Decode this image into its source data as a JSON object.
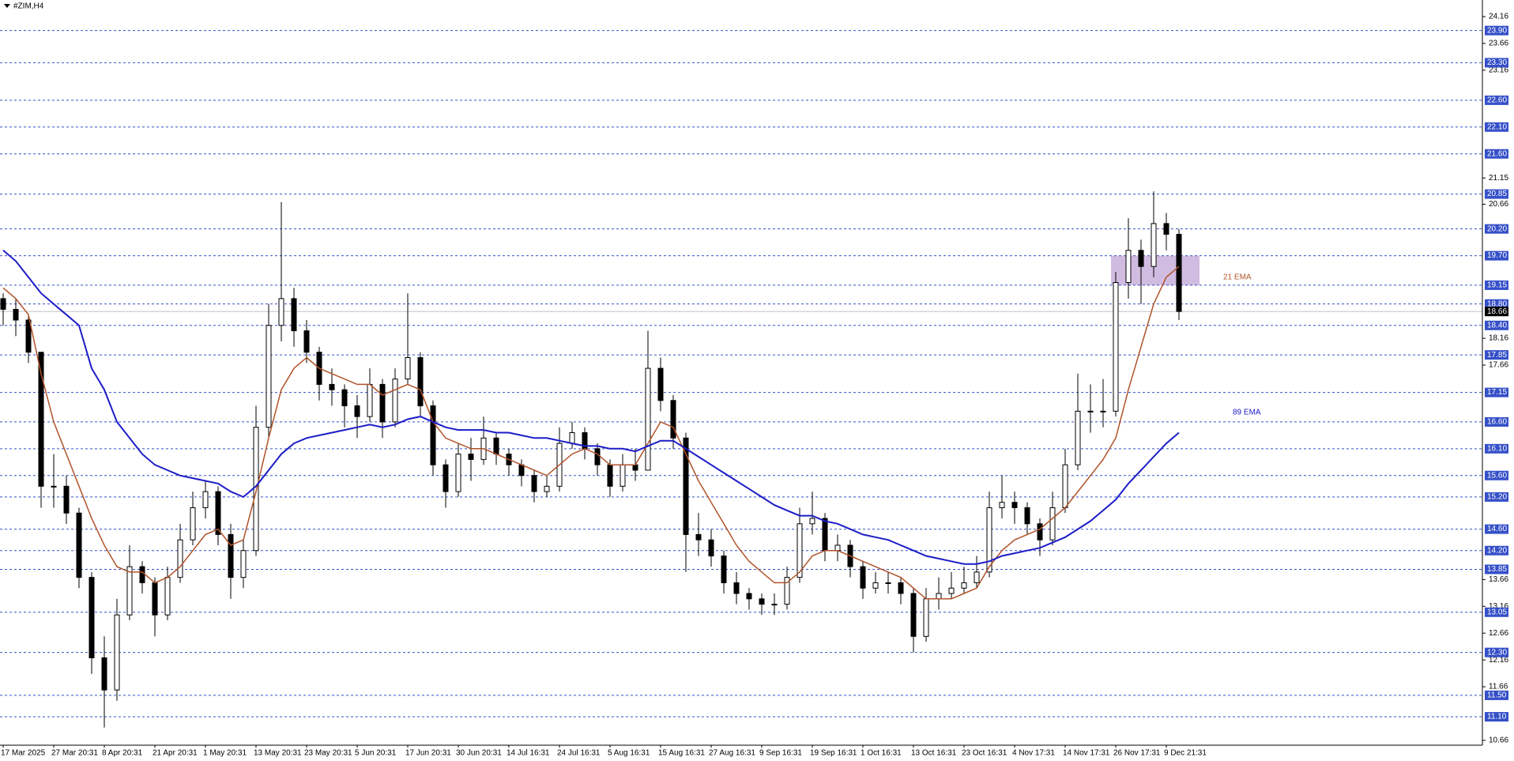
{
  "header": "#ZIM,H4",
  "chart_data": {
    "type": "candlestick",
    "categories": [
      "17 Mar 2025",
      null,
      null,
      null,
      "27 Mar 20:31",
      null,
      null,
      null,
      "8 Apr 20:31",
      null,
      null,
      null,
      "21 Apr 20:31",
      null,
      null,
      null,
      "1 May 20:31",
      null,
      null,
      null,
      "13 May 20:31",
      null,
      null,
      null,
      "23 May 20:31",
      null,
      null,
      null,
      "5 Jun 20:31",
      null,
      null,
      null,
      "17 Jun 20:31",
      null,
      null,
      null,
      "30 Jun 20:31",
      null,
      null,
      null,
      "14 Jul 16:31",
      null,
      null,
      null,
      "24 Jul 16:31",
      null,
      null,
      null,
      "5 Aug 16:31",
      null,
      null,
      null,
      "15 Aug 16:31",
      null,
      null,
      null,
      "27 Aug 16:31",
      null,
      null,
      null,
      "9 Sep 16:31",
      null,
      null,
      null,
      "19 Sep 16:31",
      null,
      null,
      null,
      "1 Oct 16:31",
      null,
      null,
      null,
      "13 Oct 16:31",
      null,
      null,
      null,
      "23 Oct 16:31",
      null,
      null,
      null,
      "4 Nov 17:31",
      null,
      null,
      null,
      "14 Nov 17:31",
      null,
      null,
      null,
      "26 Nov 17:31",
      null,
      null,
      null,
      "9 Dec 21:31",
      null
    ],
    "open": [
      18.9,
      18.7,
      18.5,
      17.9,
      15.4,
      15.4,
      14.9,
      13.7,
      12.2,
      11.6,
      13.0,
      13.9,
      13.6,
      13.0,
      13.7,
      14.4,
      15.0,
      15.3,
      14.5,
      13.7,
      14.2,
      16.5,
      18.4,
      18.9,
      18.3,
      17.9,
      17.3,
      17.2,
      16.9,
      16.7,
      17.3,
      16.6,
      17.4,
      17.8,
      16.9,
      15.8,
      15.3,
      16.0,
      15.9,
      16.3,
      16.0,
      15.8,
      15.6,
      15.3,
      15.4,
      16.2,
      16.4,
      16.1,
      15.8,
      15.4,
      15.8,
      15.7,
      17.6,
      17.0,
      16.3,
      14.5,
      14.4,
      14.1,
      13.6,
      13.4,
      13.3,
      13.2,
      13.2,
      13.7,
      14.7,
      14.8,
      14.2,
      14.3,
      13.9,
      13.5,
      13.6,
      13.6,
      13.4,
      12.6,
      13.3,
      13.4,
      13.5,
      13.6,
      13.8,
      15.0,
      15.1,
      15.0,
      14.7,
      14.4,
      15.0,
      15.8,
      16.8,
      16.8,
      16.8,
      19.2,
      19.8,
      19.5,
      20.3,
      20.1
    ],
    "high": [
      19.0,
      18.9,
      18.6,
      17.9,
      16.0,
      15.6,
      15.0,
      13.8,
      12.6,
      13.3,
      14.3,
      14.0,
      13.7,
      13.9,
      14.7,
      15.3,
      15.5,
      15.4,
      14.7,
      14.4,
      16.9,
      18.8,
      20.7,
      19.1,
      18.5,
      18.0,
      17.6,
      17.3,
      17.1,
      17.6,
      17.4,
      17.6,
      19.0,
      17.9,
      17.0,
      15.9,
      16.2,
      16.3,
      16.7,
      16.4,
      16.1,
      15.9,
      15.7,
      15.6,
      16.5,
      16.6,
      16.5,
      16.2,
      15.9,
      16.0,
      16.1,
      18.3,
      17.8,
      17.1,
      16.4,
      14.9,
      14.6,
      14.2,
      13.8,
      13.5,
      13.4,
      13.4,
      13.9,
      15.0,
      15.3,
      14.9,
      14.5,
      14.4,
      14.0,
      13.8,
      13.8,
      13.7,
      13.5,
      13.5,
      13.7,
      13.8,
      13.9,
      14.1,
      15.3,
      15.6,
      15.3,
      15.1,
      14.8,
      15.3,
      16.1,
      17.5,
      17.3,
      17.4,
      19.4,
      20.4,
      20.0,
      20.9,
      20.5,
      20.2
    ],
    "low": [
      18.4,
      18.2,
      17.7,
      15.0,
      15.0,
      14.7,
      13.5,
      11.9,
      10.9,
      11.4,
      12.9,
      13.4,
      12.6,
      12.9,
      13.6,
      14.3,
      14.8,
      14.3,
      13.3,
      13.5,
      14.1,
      16.3,
      18.1,
      18.0,
      17.7,
      17.0,
      16.9,
      16.5,
      16.3,
      16.6,
      16.3,
      16.5,
      17.3,
      16.7,
      15.6,
      15.0,
      15.2,
      15.5,
      15.8,
      15.8,
      15.6,
      15.4,
      15.1,
      15.2,
      15.3,
      16.1,
      15.9,
      15.6,
      15.2,
      15.3,
      15.5,
      15.7,
      16.8,
      16.1,
      13.8,
      14.1,
      13.9,
      13.4,
      13.2,
      13.1,
      13.0,
      13.0,
      13.1,
      13.6,
      14.5,
      14.0,
      14.0,
      13.7,
      13.3,
      13.4,
      13.4,
      13.2,
      12.3,
      12.5,
      13.1,
      13.3,
      13.4,
      13.5,
      13.7,
      14.8,
      14.7,
      14.5,
      14.1,
      14.3,
      14.9,
      15.7,
      16.4,
      16.5,
      16.7,
      18.9,
      18.8,
      19.3,
      19.8,
      18.5
    ],
    "close": [
      18.7,
      18.5,
      17.9,
      15.4,
      15.4,
      14.9,
      13.7,
      12.2,
      11.6,
      13.0,
      13.9,
      13.6,
      13.0,
      13.7,
      14.4,
      15.0,
      15.3,
      14.5,
      13.7,
      14.2,
      16.5,
      18.4,
      18.9,
      18.3,
      17.9,
      17.3,
      17.2,
      16.9,
      16.7,
      17.3,
      16.6,
      17.4,
      17.8,
      16.9,
      15.8,
      15.3,
      16.0,
      15.9,
      16.3,
      16.0,
      15.8,
      15.6,
      15.3,
      15.4,
      16.2,
      16.4,
      16.1,
      15.8,
      15.4,
      15.8,
      15.7,
      17.6,
      17.0,
      16.3,
      14.5,
      14.4,
      14.1,
      13.6,
      13.4,
      13.3,
      13.2,
      13.2,
      13.7,
      14.7,
      14.8,
      14.2,
      14.3,
      13.9,
      13.5,
      13.6,
      13.6,
      13.4,
      12.6,
      13.3,
      13.4,
      13.5,
      13.6,
      13.8,
      15.0,
      15.1,
      15.0,
      14.7,
      14.4,
      15.0,
      15.8,
      16.8,
      16.8,
      16.8,
      19.2,
      19.8,
      19.5,
      20.3,
      20.1,
      18.66
    ],
    "series": [
      {
        "name": "21 EMA",
        "color": "#b0532a",
        "values": [
          19.1,
          18.9,
          18.6,
          17.5,
          16.6,
          16.0,
          15.4,
          14.8,
          14.3,
          13.9,
          13.8,
          13.8,
          13.6,
          13.7,
          13.9,
          14.2,
          14.5,
          14.6,
          14.3,
          14.4,
          15.3,
          16.3,
          17.2,
          17.6,
          17.8,
          17.6,
          17.5,
          17.4,
          17.3,
          17.3,
          17.1,
          17.2,
          17.3,
          17.2,
          16.6,
          16.3,
          16.2,
          16.1,
          16.1,
          16.0,
          15.9,
          15.8,
          15.7,
          15.6,
          15.8,
          16.0,
          16.1,
          16.0,
          15.8,
          15.8,
          15.8,
          16.2,
          16.6,
          16.5,
          16.0,
          15.5,
          15.1,
          14.7,
          14.3,
          14.0,
          13.8,
          13.6,
          13.6,
          13.8,
          14.1,
          14.2,
          14.2,
          14.1,
          14.0,
          13.9,
          13.8,
          13.7,
          13.5,
          13.3,
          13.3,
          13.3,
          13.4,
          13.5,
          13.9,
          14.2,
          14.4,
          14.5,
          14.6,
          14.8,
          15.0,
          15.3,
          15.6,
          15.9,
          16.3,
          17.2,
          18.0,
          18.8,
          19.3,
          19.5
        ]
      },
      {
        "name": "89 EMA",
        "color": "#1c1cc8",
        "values": [
          19.8,
          19.6,
          19.3,
          19.0,
          18.8,
          18.6,
          18.4,
          17.6,
          17.2,
          16.6,
          16.3,
          16.0,
          15.8,
          15.7,
          15.6,
          15.55,
          15.5,
          15.45,
          15.3,
          15.2,
          15.4,
          15.7,
          16.0,
          16.2,
          16.3,
          16.35,
          16.4,
          16.45,
          16.5,
          16.55,
          16.5,
          16.55,
          16.65,
          16.7,
          16.6,
          16.5,
          16.45,
          16.45,
          16.45,
          16.4,
          16.4,
          16.35,
          16.3,
          16.3,
          16.25,
          16.2,
          16.15,
          16.15,
          16.1,
          16.1,
          16.05,
          16.15,
          16.25,
          16.25,
          16.1,
          15.95,
          15.8,
          15.65,
          15.5,
          15.35,
          15.2,
          15.05,
          14.95,
          14.85,
          14.85,
          14.75,
          14.7,
          14.6,
          14.5,
          14.45,
          14.4,
          14.3,
          14.2,
          14.1,
          14.05,
          14.0,
          13.95,
          13.95,
          14.0,
          14.1,
          14.15,
          14.2,
          14.25,
          14.35,
          14.45,
          14.6,
          14.75,
          14.95,
          15.15,
          15.45,
          15.7,
          15.95,
          16.2,
          16.4
        ]
      }
    ],
    "ylim": [
      10.57,
      24.47
    ],
    "yticks": [
      24.16,
      23.66,
      23.16,
      21.15,
      20.66,
      18.16,
      17.66,
      13.66,
      13.16,
      12.66,
      12.16,
      11.66,
      10.66
    ],
    "levels": [
      {
        "value": 23.9,
        "label": "23.90"
      },
      {
        "value": 23.3,
        "label": "23.30"
      },
      {
        "value": 22.6,
        "label": "22.60"
      },
      {
        "value": 22.1,
        "label": "22.10"
      },
      {
        "value": 21.6,
        "label": "21.60"
      },
      20.85,
      {
        "value": 20.2,
        "label": "20.20"
      },
      {
        "value": 19.7,
        "label": "19.70"
      },
      19.15,
      {
        "value": 18.8,
        "label": "18.80"
      },
      {
        "value": 18.4,
        "label": "18.40"
      },
      17.85,
      17.15,
      {
        "value": 16.6,
        "label": "16.60"
      },
      {
        "value": 16.1,
        "label": "16.10"
      },
      {
        "value": 15.6,
        "label": "15.60"
      },
      {
        "value": 15.2,
        "label": "15.20"
      },
      {
        "value": 14.6,
        "label": "14.60"
      },
      {
        "value": 14.2,
        "label": "14.20"
      },
      13.85,
      13.05,
      {
        "value": 12.3,
        "label": "12.30"
      },
      {
        "value": 11.5,
        "label": "11.50"
      },
      {
        "value": 11.1,
        "label": "11.10"
      }
    ],
    "level_color": "#3550c8",
    "last_price": 18.66,
    "zone": {
      "low": 19.15,
      "high": 19.7,
      "color": "#c9b0dc"
    }
  }
}
